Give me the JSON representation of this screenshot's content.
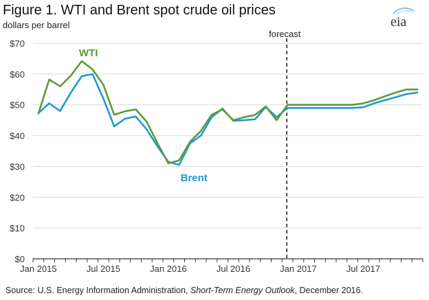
{
  "header": {
    "title": "Figure 1. WTI and Brent spot crude oil prices",
    "subtitle": "dollars per barrel"
  },
  "logo": {
    "text": "eia",
    "icon": "eia-logo"
  },
  "footer": {
    "source_prefix": "Source: U.S. Energy Information Administration, ",
    "source_italic": "Short-Term Energy Outlook",
    "source_suffix": ", December 2016."
  },
  "chart_data": {
    "type": "line",
    "title": "Figure 1. WTI and Brent spot crude oil prices",
    "ylabel": "dollars per barrel",
    "ylim": [
      0,
      70
    ],
    "y_ticks": [
      0,
      10,
      20,
      30,
      40,
      50,
      60,
      70
    ],
    "y_tick_labels": [
      "$0",
      "$10",
      "$20",
      "$30",
      "$40",
      "$50",
      "$60",
      "$70"
    ],
    "x_tick_labels": [
      "Jan 2015",
      "Jul 2015",
      "Jan 2016",
      "Jul 2016",
      "Jan 2017",
      "Jul 2017"
    ],
    "x": [
      "Jan 2015",
      "Feb 2015",
      "Mar 2015",
      "Apr 2015",
      "May 2015",
      "Jun 2015",
      "Jul 2015",
      "Aug 2015",
      "Sep 2015",
      "Oct 2015",
      "Nov 2015",
      "Dec 2015",
      "Jan 2016",
      "Feb 2016",
      "Mar 2016",
      "Apr 2016",
      "May 2016",
      "Jun 2016",
      "Jul 2016",
      "Aug 2016",
      "Sep 2016",
      "Oct 2016",
      "Nov 2016",
      "Dec 2016",
      "Jan 2017",
      "Feb 2017",
      "Mar 2017",
      "Apr 2017",
      "May 2017",
      "Jun 2017",
      "Jul 2017",
      "Aug 2017",
      "Sep 2017",
      "Oct 2017",
      "Nov 2017",
      "Dec 2017"
    ],
    "forecast_start": "Dec 2016",
    "forecast_label": "forecast",
    "series": [
      {
        "name": "WTI",
        "color": "#5b9a3c",
        "values": [
          47.2,
          58.2,
          56.0,
          59.5,
          64.2,
          61.5,
          56.5,
          46.8,
          47.9,
          48.5,
          44.5,
          37.5,
          31.0,
          32.0,
          38.0,
          41.5,
          46.8,
          48.5,
          45.0,
          46.0,
          46.7,
          49.5,
          45.0,
          50.0,
          50.0,
          50.0,
          50.0,
          50.0,
          50.0,
          50.0,
          50.5,
          51.5,
          52.8,
          54.0,
          55.0,
          55.0
        ]
      },
      {
        "name": "Brent",
        "color": "#1f9ad6",
        "values": [
          47.3,
          50.5,
          48.0,
          54.0,
          59.3,
          60.0,
          52.0,
          43.0,
          45.5,
          46.2,
          42.0,
          36.5,
          31.5,
          30.5,
          37.5,
          40.0,
          46.0,
          48.8,
          44.8,
          45.0,
          45.3,
          49.3,
          46.0,
          49.0,
          49.0,
          49.0,
          49.0,
          49.0,
          49.0,
          49.0,
          49.2,
          50.5,
          51.5,
          52.5,
          53.5,
          54.0
        ]
      }
    ]
  }
}
